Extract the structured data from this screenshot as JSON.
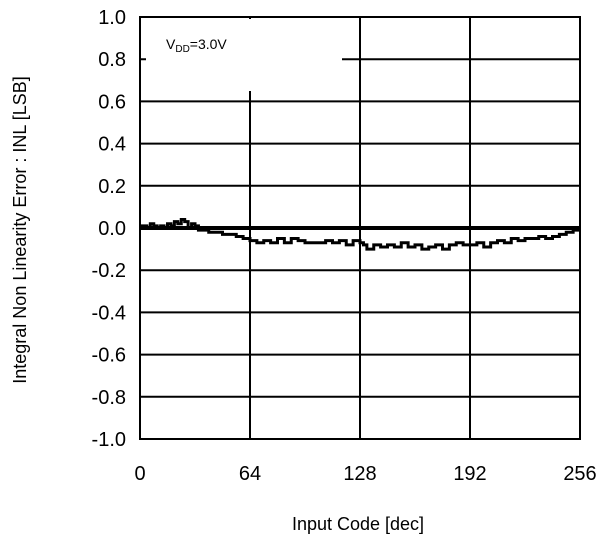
{
  "chart_data": {
    "type": "line",
    "title": "",
    "xlabel": "Input Code [dec]",
    "ylabel": "Integral Non Linearity Error : INL [LSB]",
    "xlim": [
      0,
      256
    ],
    "ylim": [
      -1.0,
      1.0
    ],
    "x_ticks": [
      0,
      64,
      128,
      192,
      256
    ],
    "x_tick_labels": [
      "0",
      "64",
      "128",
      "192",
      "256"
    ],
    "y_ticks": [
      1.0,
      0.8,
      0.6,
      0.4,
      0.2,
      0.0,
      -0.2,
      -0.4,
      -0.6,
      -0.8,
      -1.0
    ],
    "y_tick_labels": [
      "1.0",
      "0.8",
      "0.6",
      "0.4",
      "0.2",
      "0.0",
      "-0.2",
      "-0.4",
      "-0.6",
      "-0.8",
      "-1.0"
    ],
    "grid": true,
    "annotation": {
      "main": "V",
      "sub": "DD",
      "rest": "=3.0V"
    },
    "series": [
      {
        "color": "#000000",
        "points": [
          [
            0,
            0.01
          ],
          [
            4,
            0.0
          ],
          [
            6,
            0.02
          ],
          [
            8,
            0.01
          ],
          [
            10,
            0.0
          ],
          [
            12,
            0.01
          ],
          [
            14,
            0.0
          ],
          [
            16,
            0.02
          ],
          [
            18,
            0.01
          ],
          [
            20,
            0.03
          ],
          [
            22,
            0.02
          ],
          [
            24,
            0.04
          ],
          [
            26,
            0.03
          ],
          [
            28,
            0.0
          ],
          [
            30,
            0.02
          ],
          [
            32,
            0.01
          ],
          [
            34,
            -0.01
          ],
          [
            36,
            -0.01
          ],
          [
            40,
            -0.02
          ],
          [
            44,
            -0.02
          ],
          [
            48,
            -0.03
          ],
          [
            52,
            -0.03
          ],
          [
            56,
            -0.04
          ],
          [
            60,
            -0.05
          ],
          [
            64,
            -0.06
          ],
          [
            68,
            -0.07
          ],
          [
            72,
            -0.06
          ],
          [
            76,
            -0.07
          ],
          [
            80,
            -0.05
          ],
          [
            84,
            -0.07
          ],
          [
            88,
            -0.05
          ],
          [
            92,
            -0.06
          ],
          [
            96,
            -0.07
          ],
          [
            100,
            -0.07
          ],
          [
            104,
            -0.07
          ],
          [
            108,
            -0.06
          ],
          [
            112,
            -0.07
          ],
          [
            116,
            -0.06
          ],
          [
            120,
            -0.08
          ],
          [
            124,
            -0.06
          ],
          [
            128,
            -0.07
          ],
          [
            130,
            -0.08
          ],
          [
            132,
            -0.1
          ],
          [
            136,
            -0.08
          ],
          [
            140,
            -0.09
          ],
          [
            144,
            -0.08
          ],
          [
            148,
            -0.09
          ],
          [
            152,
            -0.07
          ],
          [
            156,
            -0.09
          ],
          [
            160,
            -0.08
          ],
          [
            164,
            -0.1
          ],
          [
            168,
            -0.09
          ],
          [
            172,
            -0.08
          ],
          [
            176,
            -0.1
          ],
          [
            180,
            -0.08
          ],
          [
            184,
            -0.07
          ],
          [
            188,
            -0.08
          ],
          [
            192,
            -0.08
          ],
          [
            196,
            -0.07
          ],
          [
            200,
            -0.09
          ],
          [
            204,
            -0.07
          ],
          [
            208,
            -0.06
          ],
          [
            212,
            -0.07
          ],
          [
            216,
            -0.05
          ],
          [
            220,
            -0.06
          ],
          [
            224,
            -0.05
          ],
          [
            228,
            -0.05
          ],
          [
            232,
            -0.04
          ],
          [
            236,
            -0.05
          ],
          [
            240,
            -0.04
          ],
          [
            244,
            -0.03
          ],
          [
            248,
            -0.02
          ],
          [
            252,
            -0.01
          ],
          [
            256,
            -0.01
          ]
        ]
      }
    ]
  }
}
